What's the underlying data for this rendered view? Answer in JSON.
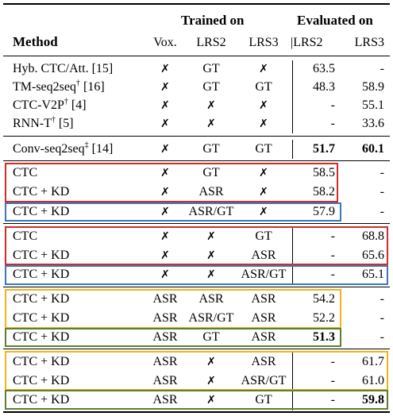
{
  "header": {
    "group_trained": "Trained on",
    "group_evaluated": "Evaluated on",
    "method": "Method",
    "vox": "Vox.",
    "lrs2": "LRS2",
    "lrs3": "LRS3",
    "eval_lrs2": "|LRS2",
    "eval_lrs3": "LRS3"
  },
  "rows": [
    {
      "method": "Hyb. CTC/Att. [15]",
      "vox": "✗",
      "lrs2": "GT",
      "lrs3": "✗",
      "e2": "63.5",
      "e3": "-"
    },
    {
      "method": "TM-seq2seq",
      "sup": "†",
      "ref": " [16]",
      "vox": "✗",
      "lrs2": "GT",
      "lrs3": "GT",
      "e2": "48.3",
      "e3": "58.9"
    },
    {
      "method": "CTC-V2P",
      "sup": "†",
      "ref": " [4]",
      "vox": "✗",
      "lrs2": "✗",
      "lrs3": "✗",
      "e2": "-",
      "e3": "55.1"
    },
    {
      "method": "RNN-T",
      "sup": "†",
      "ref": " [5]",
      "vox": "✗",
      "lrs2": "✗",
      "lrs3": "✗",
      "e2": "-",
      "e3": "33.6"
    },
    {
      "method": "Conv-seq2seq",
      "sup": "‡",
      "ref": " [14]",
      "vox": "✗",
      "lrs2": "GT",
      "lrs3": "GT",
      "e2": "51.7",
      "e3": "60.1"
    },
    {
      "method": "CTC",
      "vox": "✗",
      "lrs2": "GT",
      "lrs3": "✗",
      "e2": "58.5",
      "e3": "-"
    },
    {
      "method": "CTC + KD",
      "vox": "✗",
      "lrs2": "ASR",
      "lrs3": "✗",
      "e2": "58.2",
      "e3": "-"
    },
    {
      "method": "CTC + KD",
      "vox": "✗",
      "lrs2": "ASR/GT",
      "lrs3": "✗",
      "e2": "57.9",
      "e3": "-"
    },
    {
      "method": "CTC",
      "vox": "✗",
      "lrs2": "✗",
      "lrs3": "GT",
      "e2": "-",
      "e3": "68.8"
    },
    {
      "method": "CTC + KD",
      "vox": "✗",
      "lrs2": "✗",
      "lrs3": "ASR",
      "e2": "-",
      "e3": "65.6"
    },
    {
      "method": "CTC + KD",
      "vox": "✗",
      "lrs2": "✗",
      "lrs3": "ASR/GT",
      "e2": "-",
      "e3": "65.1"
    },
    {
      "method": "CTC + KD",
      "vox": "ASR",
      "lrs2": "ASR",
      "lrs3": "ASR",
      "e2": "54.2",
      "e3": "-"
    },
    {
      "method": "CTC + KD",
      "vox": "ASR",
      "lrs2": "ASR/GT",
      "lrs3": "ASR",
      "e2": "52.2",
      "e3": "-"
    },
    {
      "method": "CTC + KD",
      "vox": "ASR",
      "lrs2": "GT",
      "lrs3": "ASR",
      "e2": "51.3",
      "e3": "-"
    },
    {
      "method": "CTC + KD",
      "vox": "ASR",
      "lrs2": "✗",
      "lrs3": "ASR",
      "e2": "-",
      "e3": "61.7"
    },
    {
      "method": "CTC + KD",
      "vox": "ASR",
      "lrs2": "✗",
      "lrs3": "ASR/GT",
      "e2": "-",
      "e3": "61.0"
    },
    {
      "method": "CTC + KD",
      "vox": "ASR",
      "lrs2": "✗",
      "lrs3": "GT",
      "e2": "-",
      "e3": "59.8"
    }
  ],
  "colors": {
    "red": "#d42a2a",
    "blue": "#3a78b8",
    "yellow": "#f2b21c",
    "green": "#5f7f2e"
  }
}
